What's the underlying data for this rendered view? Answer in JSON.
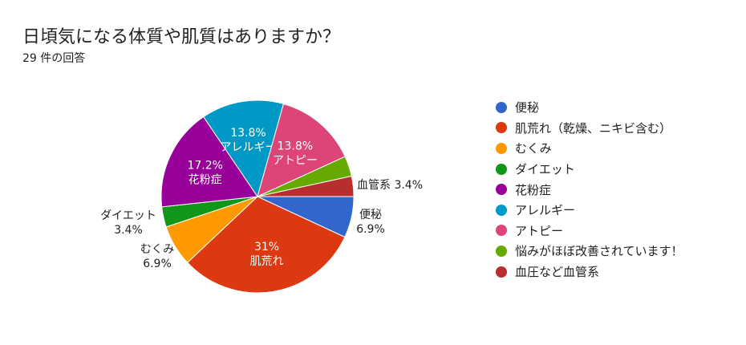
{
  "question": {
    "title": "日頃気になる体質や肌質はありますか？",
    "response_count": "29 件の回答"
  },
  "chart_data": {
    "type": "pie",
    "title": "日頃気になる体質や肌質はありますか？",
    "total_responses": 29,
    "legend_position": "right",
    "slices": [
      {
        "label": "便秘",
        "percent": 6.9,
        "display": "6.9%",
        "outside_label": "便秘",
        "color": "#3366cc"
      },
      {
        "label": "肌荒れ（乾燥、ニキビ含む）",
        "percent": 31,
        "display": "31%",
        "inside_label": "肌荒れ",
        "color": "#dc3912"
      },
      {
        "label": "むくみ",
        "percent": 6.9,
        "display": "6.9%",
        "outside_label": "むくみ",
        "color": "#ff9900"
      },
      {
        "label": "ダイエット",
        "percent": 3.4,
        "display": "3.4%",
        "outside_label": "ダイエット",
        "color": "#109618"
      },
      {
        "label": "花粉症",
        "percent": 17.2,
        "display": "17.2%",
        "inside_label": "花粉症",
        "color": "#990099"
      },
      {
        "label": "アレルギー",
        "percent": 13.8,
        "display": "13.8%",
        "inside_label": "アレルギー",
        "color": "#0099c6"
      },
      {
        "label": "アトピー",
        "percent": 13.8,
        "display": "13.8%",
        "inside_label": "アトピー",
        "color": "#dd4477"
      },
      {
        "label": "悩みがほぼ改善されています！",
        "percent": 3.4,
        "display": "",
        "color": "#66aa00"
      },
      {
        "label": "血圧など血管系",
        "percent": 3.4,
        "display": "3.4%",
        "outside_label": "血管系",
        "color": "#b82e2e"
      }
    ]
  }
}
